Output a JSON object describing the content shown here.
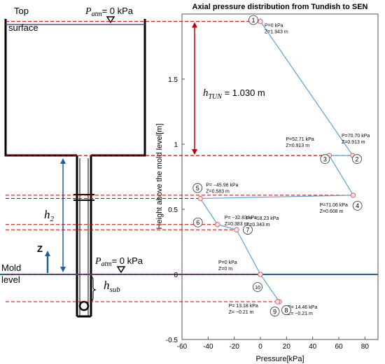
{
  "schematic": {
    "top_surface_label": [
      "Top",
      "surface"
    ],
    "patm_top": {
      "symbol": "P",
      "sub": "atm",
      "value": "= 0 kPa"
    },
    "patm_mold": {
      "symbol": "P",
      "sub": "atm",
      "value": "= 0 kPa"
    },
    "mold_level_label": [
      "Mold",
      "level"
    ],
    "z_axis_label": "Z",
    "h2_label": {
      "symbol": "h",
      "sub": "2"
    },
    "hsub_label": {
      "symbol": "h",
      "sub": "sub"
    },
    "htun_label": {
      "symbol": "h",
      "sub": "TUN",
      "value": " = 1.030 m"
    }
  },
  "colors": {
    "line": "#5aa2dc",
    "marker": "#e06060",
    "dashed": "#c00000",
    "htun_arrow": "#c00000",
    "h2_arrow": "#1f5fa8",
    "mold_line": "#1f5fa8"
  },
  "chart_data": {
    "type": "line",
    "title": "Axial pressure distribution from Tundish to SEN",
    "xlabel": "Pressure[kPa]",
    "ylabel": "Height above the mold level[m]",
    "xlim": [
      -60,
      90
    ],
    "ylim": [
      -0.5,
      2.0
    ],
    "xticks": [
      "-60",
      "-40",
      "-20",
      "0",
      "20",
      "40",
      "60",
      "80"
    ],
    "yticks": [
      "-0.5",
      "0",
      "0.5",
      "1",
      "1.5"
    ],
    "points": [
      {
        "id": "1",
        "p": 0,
        "z": 1.943,
        "lines": [
          "P=0 kPa",
          "Z=1.943 m"
        ]
      },
      {
        "id": "2",
        "p": 70.7,
        "z": 0.913,
        "lines": [
          "P=70.70 kPa",
          "Z=0.913 m"
        ]
      },
      {
        "id": "3",
        "p": 52.71,
        "z": 0.913,
        "lines": [
          "P=52.71 kPa",
          "Z=0.913 m"
        ]
      },
      {
        "id": "4",
        "p": 71.06,
        "z": 0.608,
        "lines": [
          "P=71.06 kPa",
          "Z=0.608 m"
        ]
      },
      {
        "id": "5",
        "p": -45.96,
        "z": 0.583,
        "lines": [
          "P= −45.96 kPa",
          "Z=0.583 m"
        ]
      },
      {
        "id": "6",
        "p": -32.83,
        "z": 0.383,
        "lines": [
          "P= −32.83 kPa",
          "Z=0.383 m"
        ]
      },
      {
        "id": "7",
        "p": -18.23,
        "z": 0.343,
        "lines": [
          "P= −18.23 kPa",
          "Z=0.343 m"
        ]
      },
      {
        "id": "10",
        "p": 0,
        "z": 0,
        "lines": [
          "P=0 kPa",
          "Z=0 m"
        ]
      },
      {
        "id": "8",
        "p": 14.46,
        "z": -0.21,
        "lines": [
          "P= 14.46 kPa",
          "Z= −0.21 m"
        ]
      },
      {
        "id": "9",
        "p": 13.18,
        "z": -0.21,
        "lines": [
          "P= 13.18 kPa",
          "Z= −0.21 m"
        ]
      }
    ],
    "path_order": [
      "1",
      "2",
      "3",
      "4",
      "5",
      "6",
      "7",
      "10",
      "8",
      "9"
    ]
  }
}
